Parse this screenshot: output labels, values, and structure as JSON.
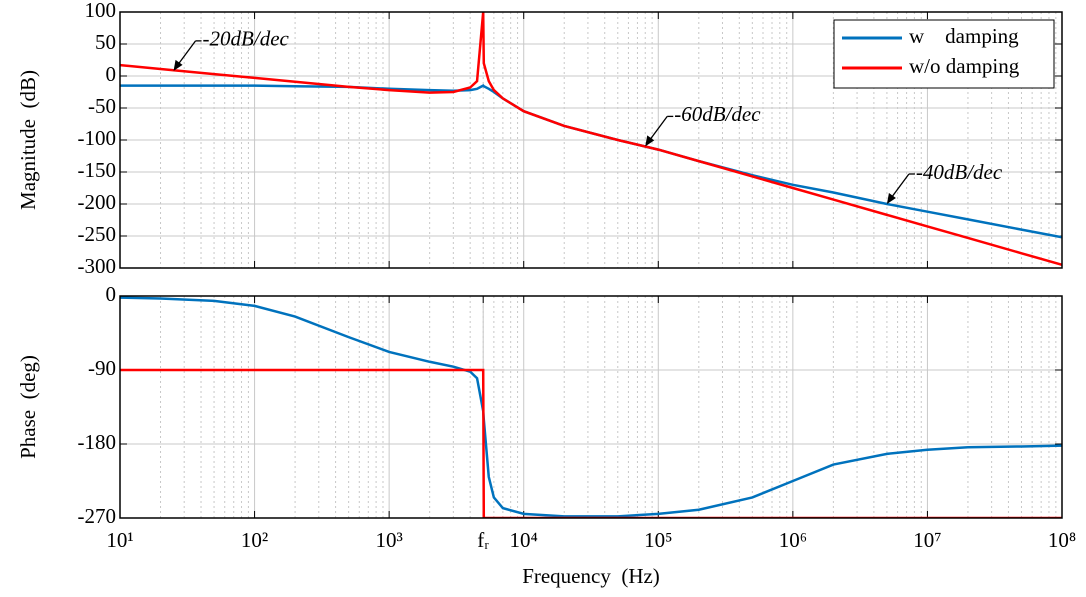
{
  "chart_data": [
    {
      "type": "line",
      "ylabel": "Magnitude  (dB)",
      "xscale": "log",
      "grid": true,
      "minor_grid": true,
      "tick_labels": false,
      "xlim": [
        10,
        100000000
      ],
      "xticks": [
        10,
        100,
        1000,
        10000,
        100000,
        1000000,
        10000000,
        100000000
      ],
      "ylim": [
        -300,
        100
      ],
      "yticks": [
        -300,
        -250,
        -200,
        -150,
        -100,
        -50,
        0,
        50,
        100
      ],
      "legend": "upper right",
      "x": [
        10,
        20,
        50,
        100,
        200,
        500,
        1000,
        2000,
        3000,
        4000,
        4500,
        5000,
        5050,
        5500,
        6000,
        7000,
        10000,
        20000,
        50000,
        100000,
        200000,
        500000,
        1000000,
        2000000,
        5000000,
        10000000,
        20000000,
        50000000,
        100000000
      ],
      "series": [
        {
          "name": "w    damping",
          "color": "#0072bd",
          "values": [
            -15,
            -15,
            -15,
            -15,
            -16,
            -17,
            -20,
            -22,
            -23,
            -22,
            -20,
            -15,
            -16,
            -20,
            -25,
            -35,
            -55,
            -78,
            -100,
            -115,
            -133,
            -155,
            -170,
            -182,
            -200,
            -212,
            -224,
            -240,
            -252
          ]
        },
        {
          "name": "w/o damping",
          "color": "#ff0000",
          "values": [
            17,
            11,
            3,
            -3,
            -9,
            -17,
            -22,
            -26,
            -25,
            -18,
            -8,
            100,
            20,
            -8,
            -22,
            -35,
            -55,
            -78,
            -100,
            -115,
            -133,
            -157,
            -175,
            -193,
            -217,
            -235,
            -253,
            -277,
            -295
          ]
        }
      ],
      "annotations": [
        {
          "text": "-20dB/dec",
          "x": 25,
          "y": 8
        },
        {
          "text": "-60dB/dec",
          "x": 80000,
          "y": -110
        },
        {
          "text": "-40dB/dec",
          "x": 5000000,
          "y": -200
        }
      ]
    },
    {
      "type": "line",
      "ylabel": "Phase  (deg)",
      "xlabel": "Frequency  (Hz)",
      "xscale": "log",
      "grid": true,
      "minor_grid": true,
      "tick_labels": true,
      "xlim": [
        10,
        100000000
      ],
      "xticks": [
        {
          "value": 10,
          "label": "10¹"
        },
        {
          "value": 100,
          "label": "10²"
        },
        {
          "value": 1000,
          "label": "10³"
        },
        {
          "value": 5000,
          "label": "fᵣ"
        },
        {
          "value": 10000,
          "label": "10⁴"
        },
        {
          "value": 100000,
          "label": "10⁵"
        },
        {
          "value": 1000000,
          "label": "10⁶"
        },
        {
          "value": 10000000,
          "label": "10⁷"
        },
        {
          "value": 100000000,
          "label": "10⁸"
        }
      ],
      "ylim": [
        -270,
        0
      ],
      "yticks": [
        -270,
        -180,
        -90,
        0
      ],
      "x": [
        10,
        20,
        50,
        100,
        200,
        500,
        1000,
        2000,
        3000,
        4000,
        4500,
        5000,
        5050,
        5500,
        6000,
        7000,
        10000,
        20000,
        50000,
        100000,
        200000,
        500000,
        1000000,
        2000000,
        5000000,
        10000000,
        20000000,
        50000000,
        100000000
      ],
      "series": [
        {
          "name": "w    damping",
          "color": "#0072bd",
          "values": [
            -2,
            -3,
            -6,
            -12,
            -25,
            -50,
            -68,
            -80,
            -86,
            -92,
            -100,
            -140,
            -150,
            -220,
            -245,
            -258,
            -265,
            -268,
            -268,
            -265,
            -260,
            -245,
            -225,
            -205,
            -192,
            -187,
            -184,
            -183,
            -182
          ]
        },
        {
          "name": "w/o damping",
          "color": "#ff0000",
          "values": [
            -90,
            -90,
            -90,
            -90,
            -90,
            -90,
            -90,
            -90,
            -90,
            -90,
            -90,
            -90,
            -270,
            -270,
            -270,
            -270,
            -270,
            -270,
            -270,
            -270,
            -270,
            -270,
            -270,
            -270,
            -270,
            -270,
            -270,
            -270,
            -270
          ]
        }
      ]
    }
  ]
}
